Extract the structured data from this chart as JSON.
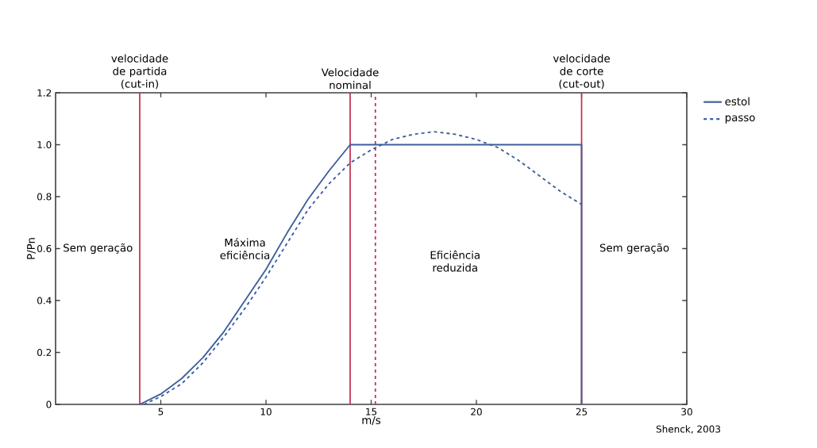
{
  "chart_data": {
    "type": "line",
    "xlabel": "m/s",
    "ylabel": "P/Pn",
    "xlim": [
      0,
      30
    ],
    "xticks": [
      5,
      10,
      15,
      20,
      25,
      30
    ],
    "ylim": [
      0,
      1.2
    ],
    "yticks": [
      0,
      {
        "value": 0.2,
        "label": "0.2"
      },
      {
        "value": 0.4,
        "label": "0.4"
      },
      {
        "value": 0.6,
        "label": "0.6"
      },
      {
        "value": 0.8,
        "label": "0.8"
      },
      {
        "value": 1.0,
        "label": "1.0"
      },
      {
        "value": 1.2,
        "label": "1.2"
      }
    ],
    "series": [
      {
        "name": "estol",
        "color": "#3d5f99",
        "line_style": "solid",
        "x": [
          4,
          5,
          6,
          7,
          8,
          9,
          10,
          11,
          12,
          13,
          14,
          25,
          25
        ],
        "values": [
          0,
          0.04,
          0.1,
          0.18,
          0.28,
          0.4,
          0.52,
          0.66,
          0.79,
          0.9,
          1.0,
          1.0,
          0
        ]
      },
      {
        "name": "passo",
        "color": "#3d5f99",
        "line_style": "dashed",
        "x": [
          4.2,
          5,
          6,
          7,
          8,
          9,
          10,
          11,
          12,
          13,
          14,
          15,
          16,
          17,
          18,
          19,
          20,
          21,
          22,
          23,
          24,
          25
        ],
        "values": [
          0,
          0.03,
          0.08,
          0.16,
          0.26,
          0.37,
          0.49,
          0.62,
          0.75,
          0.85,
          0.93,
          0.98,
          1.02,
          1.04,
          1.05,
          1.04,
          1.02,
          0.99,
          0.94,
          0.88,
          0.82,
          0.77
        ]
      }
    ],
    "ref_lines": [
      {
        "axis": "x",
        "value": 4,
        "label": "velocidade de partida (cut-in)",
        "color": "#c4304e",
        "line_style": "solid"
      },
      {
        "axis": "x",
        "value": 14,
        "label": "Velocidade nominal",
        "color": "#c4304e",
        "line_style": "solid"
      },
      {
        "axis": "x",
        "value": 15.2,
        "color": "#c4304e",
        "line_style": "dashed"
      },
      {
        "axis": "x",
        "value": 25,
        "label": "velocidade de corte (cut-out)",
        "color": "#c4304e",
        "line_style": "solid"
      }
    ],
    "annotations": [
      "Sem geração",
      "Máxima eficiência",
      "Eficiência reduzida",
      "Sem geração",
      "Shenck, 2003"
    ],
    "legend": "top right",
    "grid": false
  }
}
